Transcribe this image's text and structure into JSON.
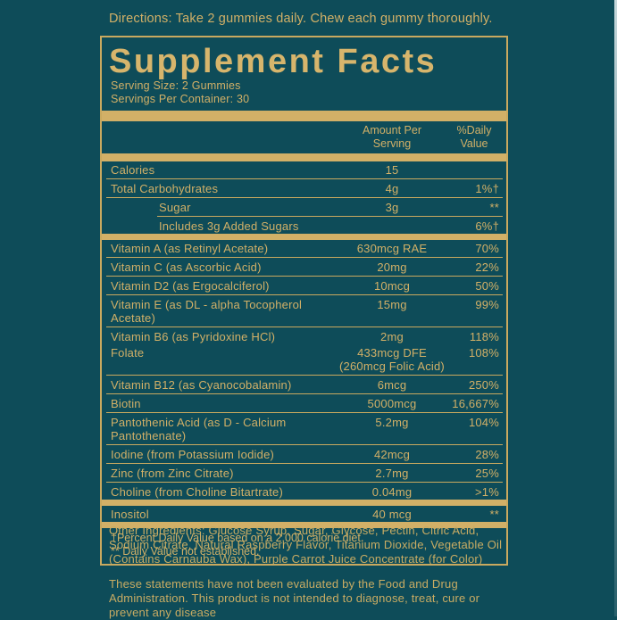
{
  "colors": {
    "background": "#0E4C59",
    "gold_text": "#D2B067",
    "gold_title": "#D7B56C",
    "rule_lines": "#C9A95F"
  },
  "directions": "Directions: Take 2 gummies daily. Chew each gummy thoroughly.",
  "panel": {
    "title": "Supplement Facts",
    "serving_size": "Serving Size: 2 Gummies",
    "servings_per_container": "Servings Per Container: 30",
    "header": {
      "amount_line1": "Amount Per",
      "amount_line2": "Serving",
      "dv_line1": "%Daily",
      "dv_line2": "Value"
    },
    "rows": [
      {
        "name": "Calories",
        "amount": "15",
        "dv": "",
        "sep": "thin"
      },
      {
        "name": "Total Carbohydrates",
        "amount": "4g",
        "dv": "1%†",
        "sep": "thin"
      },
      {
        "name": "Sugar",
        "amount": "3g",
        "dv": "**",
        "indent": true,
        "sep": "indent"
      },
      {
        "name": "Includes 3g Added Sugars",
        "amount": "",
        "dv": "6%†",
        "indent": true,
        "sep": "bar"
      },
      {
        "name": "Vitamin A (as Retinyl Acetate)",
        "amount": "630mcg RAE",
        "dv": "70%",
        "sep": "thin"
      },
      {
        "name": "Vitamin C (as Ascorbic Acid)",
        "amount": "20mg",
        "dv": "22%",
        "sep": "thin"
      },
      {
        "name": "Vitamin D2 (as Ergocalciferol)",
        "amount": "10mcg",
        "dv": "50%",
        "sep": "thin"
      },
      {
        "name": "Vitamin E (as DL - alpha Tocopherol",
        "name2": "Acetate)",
        "amount": "15mg",
        "dv": "99%",
        "sep": "thin"
      },
      {
        "name": "Vitamin B6 (as Pyridoxine HCl)",
        "amount": "2mg",
        "dv": "118%",
        "sep": "none"
      },
      {
        "name": "Folate",
        "amount": "433mcg DFE",
        "amount2": "(260mcg Folic Acid)",
        "dv": "108%",
        "sep": "thin"
      },
      {
        "name": "Vitamin B12 (as Cyanocobalamin)",
        "amount": "6mcg",
        "dv": "250%",
        "sep": "thin"
      },
      {
        "name": "Biotin",
        "amount": "5000mcg",
        "dv": "16,667%",
        "sep": "thin"
      },
      {
        "name": "Pantothenic Acid (as D - Calcium",
        "name2": "Pantothenate)",
        "amount": "5.2mg",
        "dv": "104%",
        "sep": "thin"
      },
      {
        "name": "Iodine (from Potassium Iodide)",
        "amount": "42mcg",
        "dv": "28%",
        "sep": "thin"
      },
      {
        "name": "Zinc (from Zinc Citrate)",
        "amount": "2.7mg",
        "dv": "25%",
        "sep": "thin"
      },
      {
        "name": "Choline (from Choline Bitartrate)",
        "amount": "0.04mg",
        "dv": ">1%",
        "sep": "bar"
      },
      {
        "name": "Inositol",
        "amount": "40 mcg",
        "dv": "**",
        "sep": "bar"
      }
    ],
    "footnote1": "†Percent Daily Value based on a 2,000 calorie diet.",
    "footnote2": "** Daily Value not established."
  },
  "other_ingredients": "Other Ingredients: Glucose Syrup, Sugar, Glycose, Pectin, Citric Acid, Sodium Citrate, Natural Raspberry Flavor, Titanium Dioxide, Vegetable Oil (Contains Carnauba Wax), Purple Carrot Juice Concentrate (for Color)",
  "disclaimer": "These statements have not been evaluated by the Food and Drug Administration. This product is not intended to diagnose, treat, cure or prevent any disease"
}
